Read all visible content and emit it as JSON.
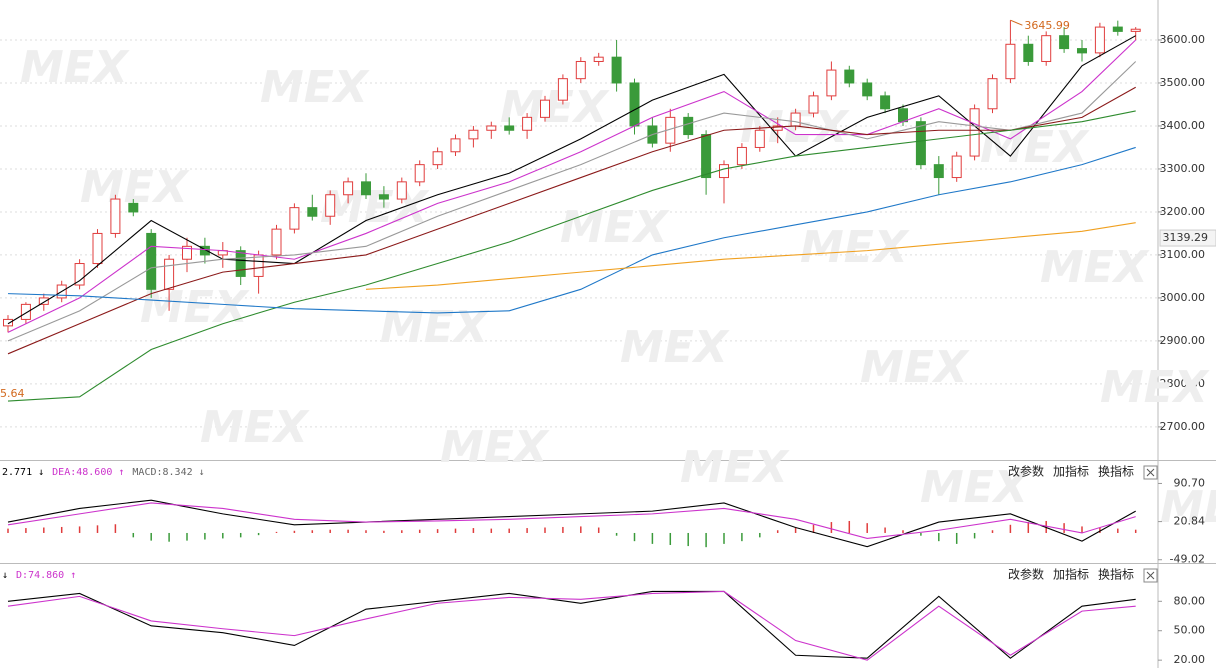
{
  "chart_data": [
    {
      "type": "candlestick",
      "candles": [
        [
          2935,
          2960,
          2920,
          2950
        ],
        [
          2950,
          2990,
          2940,
          2985
        ],
        [
          2985,
          3010,
          2970,
          3000
        ],
        [
          3000,
          3040,
          2990,
          3030
        ],
        [
          3030,
          3090,
          3020,
          3080
        ],
        [
          3080,
          3160,
          3070,
          3150
        ],
        [
          3150,
          3240,
          3140,
          3230
        ],
        [
          3220,
          3230,
          3190,
          3200
        ],
        [
          3150,
          3160,
          3000,
          3020
        ],
        [
          3020,
          3100,
          2970,
          3090
        ],
        [
          3090,
          3140,
          3060,
          3120
        ],
        [
          3120,
          3140,
          3080,
          3100
        ],
        [
          3100,
          3130,
          3070,
          3110
        ],
        [
          3110,
          3120,
          3030,
          3050
        ],
        [
          3050,
          3110,
          3010,
          3100
        ],
        [
          3100,
          3170,
          3090,
          3160
        ],
        [
          3160,
          3220,
          3150,
          3210
        ],
        [
          3210,
          3240,
          3180,
          3190
        ],
        [
          3190,
          3250,
          3170,
          3240
        ],
        [
          3240,
          3280,
          3220,
          3270
        ],
        [
          3270,
          3290,
          3230,
          3240
        ],
        [
          3240,
          3260,
          3210,
          3230
        ],
        [
          3230,
          3280,
          3220,
          3270
        ],
        [
          3270,
          3320,
          3260,
          3310
        ],
        [
          3310,
          3350,
          3300,
          3340
        ],
        [
          3340,
          3380,
          3330,
          3370
        ],
        [
          3370,
          3400,
          3350,
          3390
        ],
        [
          3390,
          3410,
          3370,
          3400
        ],
        [
          3400,
          3420,
          3380,
          3390
        ],
        [
          3390,
          3430,
          3370,
          3420
        ],
        [
          3420,
          3470,
          3410,
          3460
        ],
        [
          3460,
          3520,
          3450,
          3510
        ],
        [
          3510,
          3560,
          3500,
          3550
        ],
        [
          3550,
          3570,
          3540,
          3560
        ],
        [
          3560,
          3600,
          3480,
          3500
        ],
        [
          3500,
          3510,
          3380,
          3400
        ],
        [
          3400,
          3420,
          3350,
          3360
        ],
        [
          3360,
          3440,
          3340,
          3420
        ],
        [
          3420,
          3430,
          3370,
          3380
        ],
        [
          3380,
          3390,
          3240,
          3280
        ],
        [
          3280,
          3320,
          3220,
          3310
        ],
        [
          3310,
          3360,
          3300,
          3350
        ],
        [
          3350,
          3400,
          3340,
          3390
        ],
        [
          3390,
          3420,
          3360,
          3400
        ],
        [
          3400,
          3440,
          3390,
          3430
        ],
        [
          3430,
          3480,
          3420,
          3470
        ],
        [
          3470,
          3550,
          3460,
          3530
        ],
        [
          3530,
          3540,
          3490,
          3500
        ],
        [
          3500,
          3510,
          3460,
          3470
        ],
        [
          3470,
          3480,
          3430,
          3440
        ],
        [
          3440,
          3450,
          3400,
          3410
        ],
        [
          3410,
          3420,
          3300,
          3310
        ],
        [
          3310,
          3330,
          3240,
          3280
        ],
        [
          3280,
          3340,
          3270,
          3330
        ],
        [
          3330,
          3450,
          3320,
          3440
        ],
        [
          3440,
          3520,
          3430,
          3510
        ],
        [
          3510,
          3646,
          3500,
          3590
        ],
        [
          3590,
          3610,
          3540,
          3550
        ],
        [
          3550,
          3620,
          3540,
          3610
        ],
        [
          3610,
          3630,
          3570,
          3580
        ],
        [
          3580,
          3600,
          3550,
          3570
        ],
        [
          3570,
          3640,
          3560,
          3630
        ],
        [
          3630,
          3645,
          3610,
          3620
        ],
        [
          3620,
          3630,
          3600,
          3625
        ]
      ],
      "up_color": "#e03c3c",
      "down_color": "#3a9a3a",
      "x": [
        0,
        4,
        8,
        12,
        16,
        20,
        24,
        28,
        32,
        36,
        40,
        44,
        48,
        52,
        56,
        60,
        63
      ],
      "series": [
        {
          "color": "#000000",
          "values": [
            2940,
            3040,
            3180,
            3090,
            3080,
            3180,
            3240,
            3290,
            3370,
            3460,
            3520,
            3330,
            3420,
            3470,
            3330,
            3540,
            3610
          ]
        },
        {
          "color": "#cc33cc",
          "values": [
            2920,
            3000,
            3120,
            3110,
            3090,
            3150,
            3220,
            3270,
            3340,
            3420,
            3480,
            3380,
            3380,
            3440,
            3370,
            3480,
            3600
          ]
        },
        {
          "color": "#999999",
          "values": [
            2900,
            2970,
            3070,
            3090,
            3100,
            3120,
            3190,
            3250,
            3310,
            3380,
            3430,
            3410,
            3370,
            3410,
            3390,
            3430,
            3550
          ]
        },
        {
          "color": "#8b1a1a",
          "values": [
            2870,
            2940,
            3010,
            3060,
            3080,
            3100,
            3160,
            3220,
            3280,
            3340,
            3390,
            3400,
            3380,
            3390,
            3390,
            3420,
            3490
          ]
        },
        {
          "color": "#2e8b2e",
          "values": [
            2760,
            2770,
            2880,
            2940,
            2990,
            3030,
            3080,
            3130,
            3190,
            3250,
            3300,
            3330,
            3350,
            3370,
            3390,
            3410,
            3435
          ]
        },
        {
          "color": "#1f78c8",
          "values": [
            3010,
            3005,
            2995,
            2985,
            2975,
            2970,
            2965,
            2970,
            3020,
            3100,
            3140,
            3170,
            3200,
            3240,
            3270,
            3310,
            3350
          ]
        },
        {
          "color": "#f0a020",
          "values": [
            null,
            null,
            null,
            null,
            null,
            3020,
            3030,
            3045,
            3060,
            3075,
            3090,
            3100,
            3110,
            3125,
            3140,
            3155,
            3175
          ]
        }
      ],
      "high_label": "3645.99",
      "high_value": 3645.99,
      "high_index": 56,
      "low_label": "5.64",
      "last_price": {
        "value": 3139.29,
        "label": "3139.29"
      },
      "ylim": [
        2623,
        3693
      ],
      "yticks": [
        {
          "value": 2700,
          "label": "2700.00"
        },
        {
          "value": 2800,
          "label": "2800.00"
        },
        {
          "value": 2900,
          "label": "2900.00"
        },
        {
          "value": 3000,
          "label": "3000.00"
        },
        {
          "value": 3100,
          "label": "3100.00"
        },
        {
          "value": 3200,
          "label": "3200.00"
        },
        {
          "value": 3300,
          "label": "3300.00"
        },
        {
          "value": 3400,
          "label": "3400.00"
        },
        {
          "value": 3500,
          "label": "3500.00"
        },
        {
          "value": 3600,
          "label": "3600.00"
        }
      ],
      "grid": true,
      "watermark": "MEX"
    },
    {
      "type": "macd",
      "labels": [
        {
          "text": "2.771 ↓",
          "color": "#000000"
        },
        {
          "text": "DEA:48.600 ↑",
          "color": "#cc33cc"
        },
        {
          "text": "MACD:8.342 ↓",
          "color": "#666666"
        }
      ],
      "buttons": [
        "改参数",
        "加指标",
        "换指标"
      ],
      "histogram": [
        8,
        9,
        10,
        11,
        12,
        14,
        16,
        -8,
        -14,
        -16,
        -14,
        -12,
        -10,
        -8,
        -4,
        2,
        4,
        5,
        6,
        6,
        5,
        4,
        5,
        6,
        7,
        8,
        9,
        8,
        8,
        9,
        10,
        11,
        12,
        10,
        -5,
        -15,
        -20,
        -22,
        -24,
        -26,
        -20,
        -15,
        -8,
        5,
        10,
        15,
        20,
        22,
        18,
        10,
        5,
        -5,
        -15,
        -20,
        -10,
        5,
        15,
        20,
        22,
        18,
        12,
        10,
        8,
        6
      ],
      "x": [
        0,
        4,
        8,
        12,
        16,
        20,
        24,
        28,
        32,
        36,
        40,
        44,
        48,
        52,
        56,
        60,
        63
      ],
      "series": [
        {
          "color": "#000000",
          "values": [
            20,
            45,
            60,
            35,
            15,
            20,
            25,
            30,
            35,
            40,
            55,
            10,
            -25,
            20,
            35,
            -15,
            40
          ]
        },
        {
          "color": "#cc33cc",
          "values": [
            15,
            35,
            55,
            45,
            25,
            20,
            22,
            25,
            30,
            35,
            45,
            25,
            -10,
            5,
            25,
            0,
            30
          ]
        }
      ],
      "ylim": [
        -55,
        130
      ],
      "yticks": [
        {
          "value": 90.7,
          "label": "90.70"
        },
        {
          "value": 20.84,
          "label": "20.84"
        },
        {
          "value": -49.02,
          "label": "-49.02"
        }
      ]
    },
    {
      "type": "line",
      "labels": [
        {
          "text": "↓",
          "color": "#000000"
        },
        {
          "text": "D:74.860 ↑",
          "color": "#cc33cc"
        }
      ],
      "buttons": [
        "改参数",
        "加指标",
        "换指标"
      ],
      "x": [
        0,
        4,
        8,
        12,
        16,
        20,
        24,
        28,
        32,
        36,
        40,
        44,
        48,
        52,
        56,
        60,
        63
      ],
      "series": [
        {
          "color": "#000000",
          "values": [
            80,
            88,
            55,
            48,
            35,
            72,
            80,
            88,
            78,
            90,
            90,
            25,
            22,
            85,
            22,
            75,
            82
          ]
        },
        {
          "color": "#cc33cc",
          "values": [
            75,
            85,
            60,
            52,
            45,
            62,
            78,
            84,
            82,
            88,
            90,
            40,
            20,
            75,
            25,
            70,
            75
          ]
        }
      ],
      "ylim": [
        12,
        117
      ],
      "yticks": [
        {
          "value": 20,
          "label": "20.00"
        },
        {
          "value": 50,
          "label": "50.00"
        },
        {
          "value": 80,
          "label": "80.00"
        }
      ]
    }
  ]
}
